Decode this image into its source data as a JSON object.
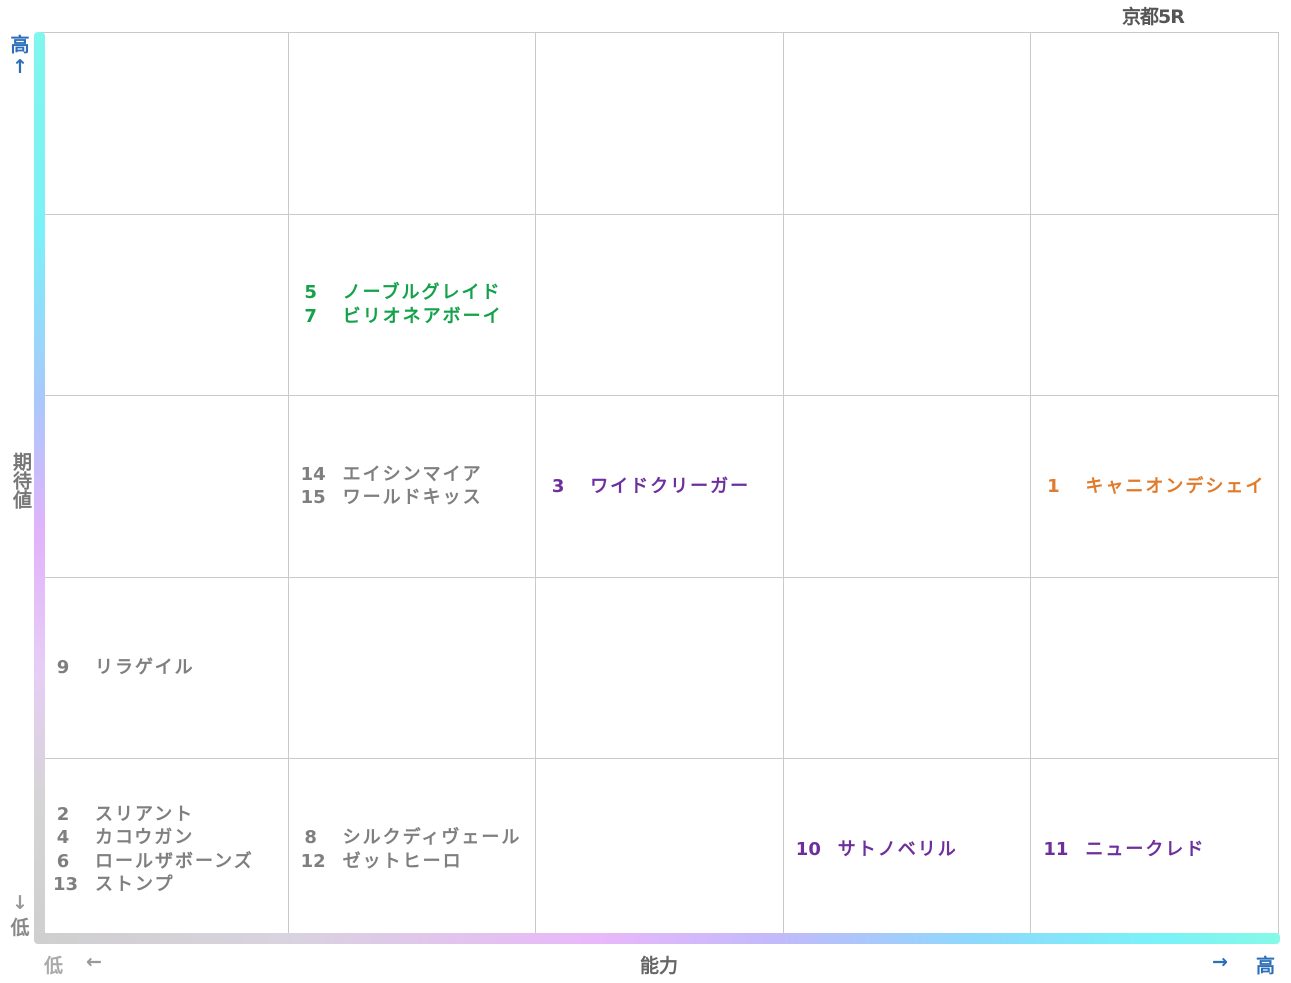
{
  "title": "京都5R",
  "axes": {
    "y_high": "高",
    "y_high_arrow": "↑",
    "y_label": "期待値",
    "y_low_arrow": "↓",
    "y_low": "低",
    "x_low": "低",
    "x_low_arrow": "←",
    "x_label": "能力",
    "x_high_arrow": "→",
    "x_high": "高"
  },
  "colors": {
    "gray": "#7f7f7f",
    "green": "#13a24a",
    "purple": "#6d2f9e",
    "orange": "#e07b2c",
    "axis_accent": "#2b6fb8"
  },
  "chart_data": {
    "type": "table",
    "title": "京都5R",
    "xlabel": "能力",
    "ylabel": "期待値",
    "columns": 5,
    "rows": 5,
    "cells": [
      {
        "col": 1,
        "row": 3,
        "color": "green",
        "horses": [
          {
            "num": "5",
            "name": "ノーブルグレイド"
          },
          {
            "num": "7",
            "name": "ビリオネアボーイ"
          }
        ]
      },
      {
        "col": 1,
        "row": 2,
        "color": "gray",
        "horses": [
          {
            "num": "14",
            "name": "エイシンマイア"
          },
          {
            "num": "15",
            "name": "ワールドキッス"
          }
        ]
      },
      {
        "col": 2,
        "row": 2,
        "color": "purple",
        "horses": [
          {
            "num": "3",
            "name": "ワイドクリーガー"
          }
        ]
      },
      {
        "col": 4,
        "row": 2,
        "color": "orange",
        "horses": [
          {
            "num": "1",
            "name": "キャニオンデシェイ"
          }
        ]
      },
      {
        "col": 0,
        "row": 1,
        "color": "gray",
        "horses": [
          {
            "num": "9",
            "name": "リラゲイル"
          }
        ]
      },
      {
        "col": 0,
        "row": 0,
        "color": "gray",
        "horses": [
          {
            "num": "2",
            "name": "スリアント"
          },
          {
            "num": "4",
            "name": "カコウガン"
          },
          {
            "num": "6",
            "name": "ロールザボーンズ"
          },
          {
            "num": "13",
            "name": "ストンプ"
          }
        ]
      },
      {
        "col": 1,
        "row": 0,
        "color": "gray",
        "horses": [
          {
            "num": "8",
            "name": "シルクディヴェール"
          },
          {
            "num": "12",
            "name": "ゼットヒーロ"
          }
        ]
      },
      {
        "col": 3,
        "row": 0,
        "color": "purple",
        "horses": [
          {
            "num": "10",
            "name": "サトノベリル"
          }
        ]
      },
      {
        "col": 4,
        "row": 0,
        "color": "purple",
        "horses": [
          {
            "num": "11",
            "name": "ニュークレド"
          }
        ]
      }
    ]
  }
}
